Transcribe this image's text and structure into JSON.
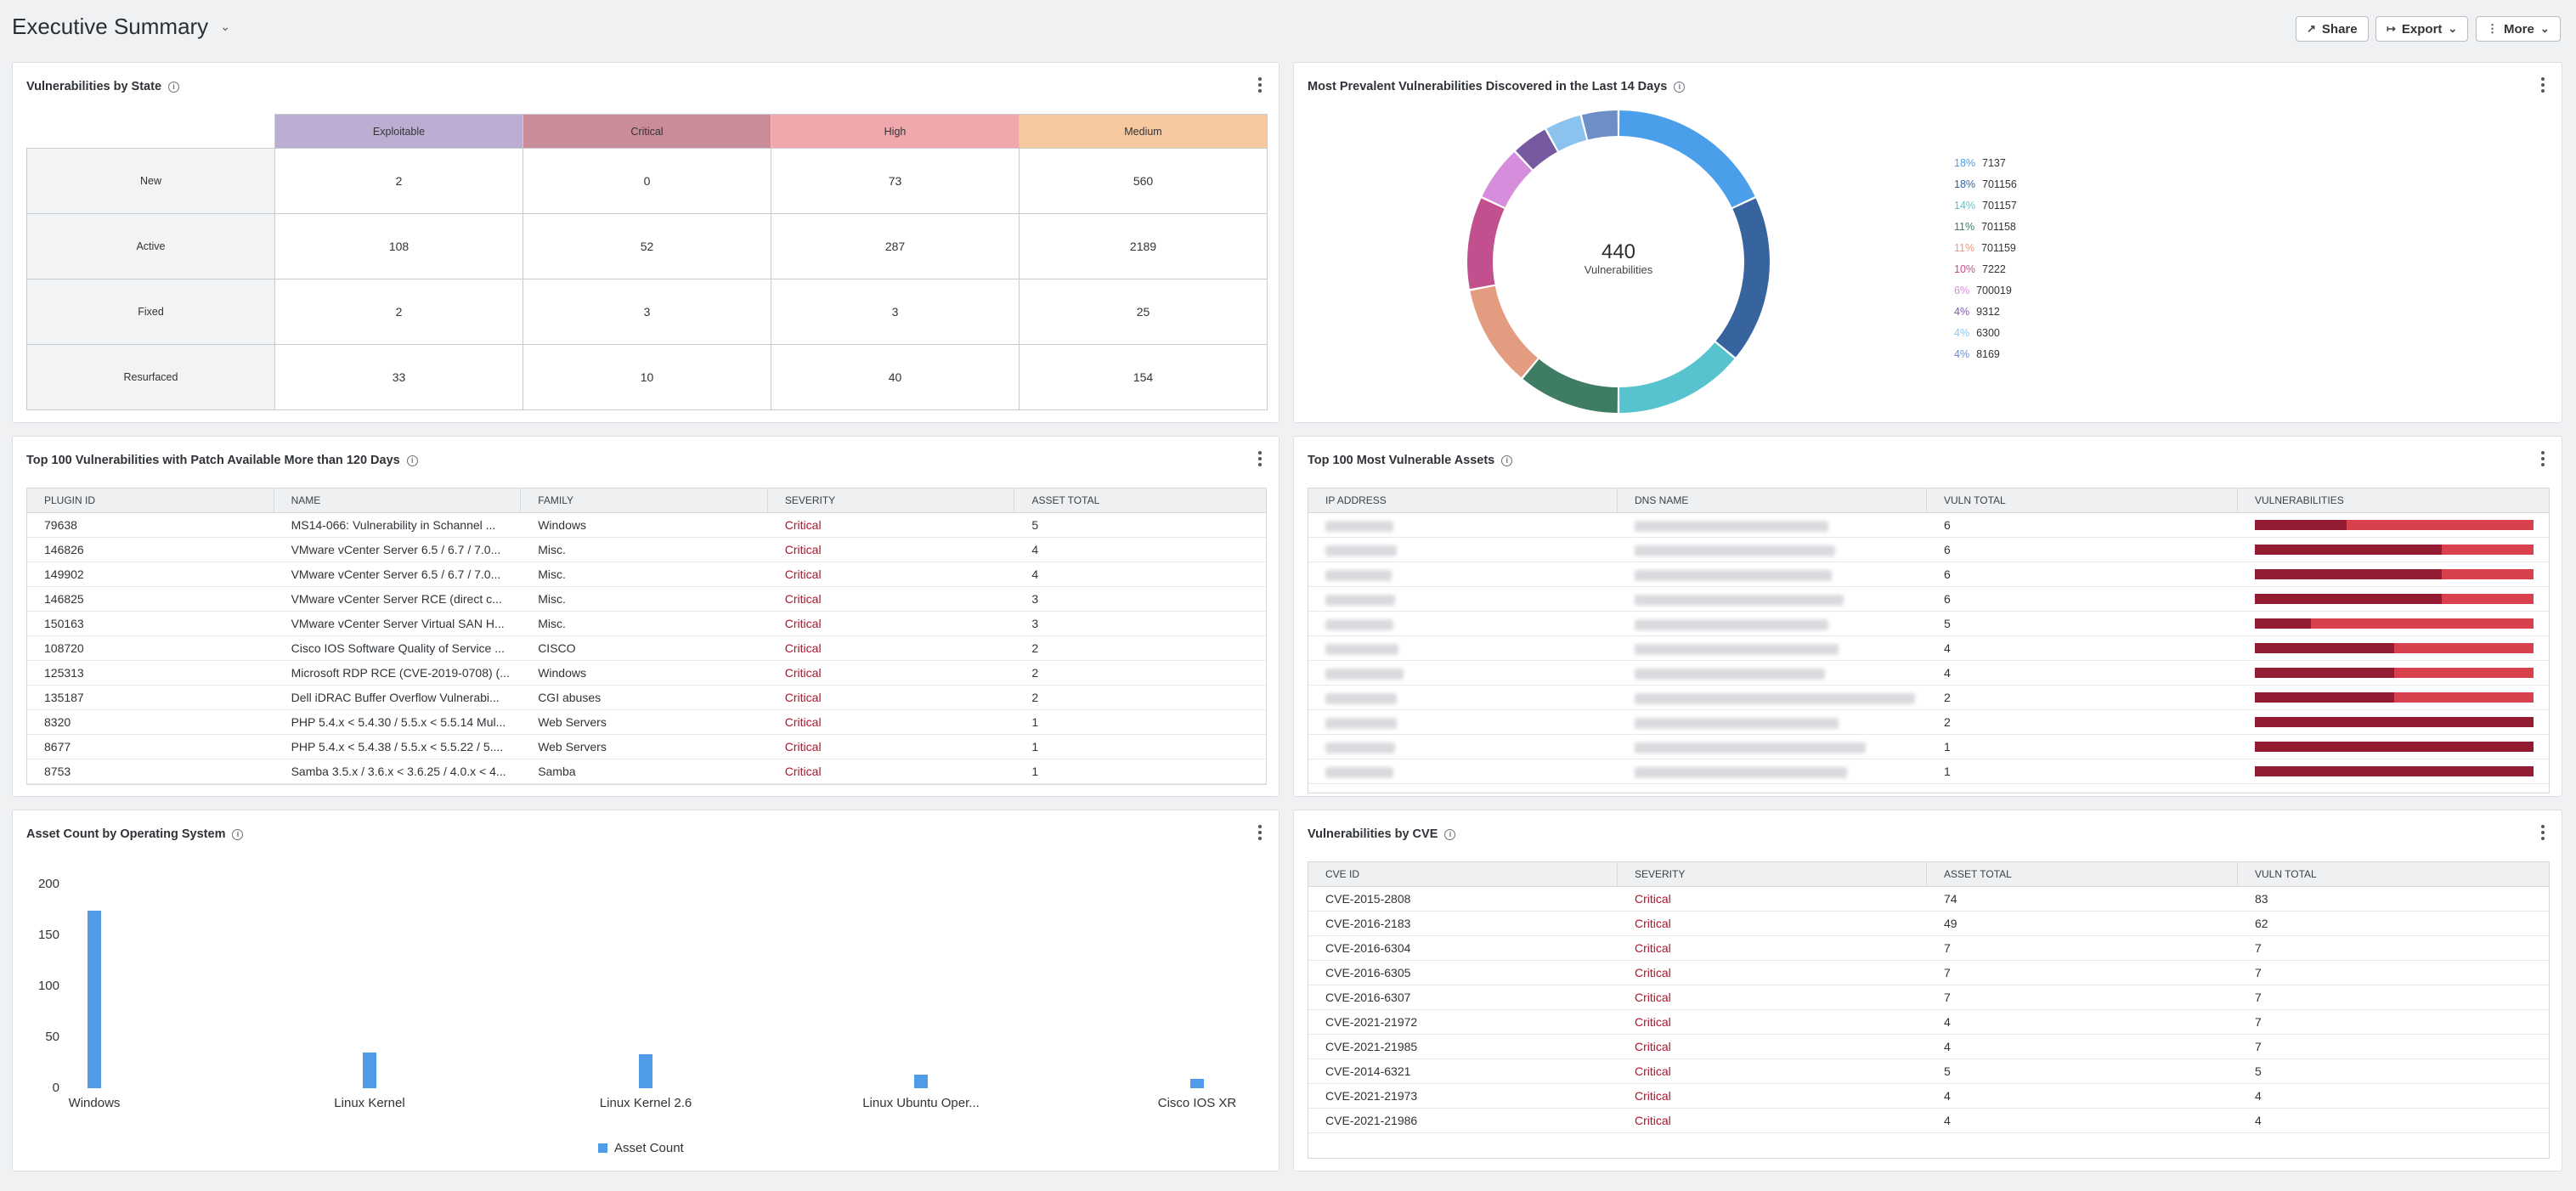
{
  "header": {
    "title": "Executive Summary",
    "share_label": "Share",
    "export_label": "Export",
    "more_label": "More"
  },
  "vuln_by_state": {
    "title": "Vulnerabilities by State",
    "columns": [
      {
        "label": "Exploitable",
        "color": "#bcaed3"
      },
      {
        "label": "Critical",
        "color": "#c98c98"
      },
      {
        "label": "High",
        "color": "#f0a8ad"
      },
      {
        "label": "Medium",
        "color": "#f7c9a1"
      }
    ],
    "rows": [
      {
        "label": "New",
        "values": [
          "2",
          "0",
          "73",
          "560"
        ]
      },
      {
        "label": "Active",
        "values": [
          "108",
          "52",
          "287",
          "2189"
        ]
      },
      {
        "label": "Fixed",
        "values": [
          "2",
          "3",
          "3",
          "25"
        ]
      },
      {
        "label": "Resurfaced",
        "values": [
          "33",
          "10",
          "40",
          "154"
        ]
      }
    ]
  },
  "prevalent": {
    "title": "Most Prevalent Vulnerabilities Discovered in the Last 14 Days",
    "center_value": "440",
    "center_label": "Vulnerabilities",
    "chart_data": {
      "type": "pie",
      "slices": [
        {
          "pct": "18%",
          "label": "7137",
          "value": 18,
          "color": "#4b9ee9"
        },
        {
          "pct": "18%",
          "label": "701156",
          "value": 18,
          "color": "#37649f"
        },
        {
          "pct": "14%",
          "label": "701157",
          "value": 14,
          "color": "#56c3cf"
        },
        {
          "pct": "11%",
          "label": "701158",
          "value": 11,
          "color": "#3e7d63"
        },
        {
          "pct": "11%",
          "label": "701159",
          "value": 11,
          "color": "#e49c80"
        },
        {
          "pct": "10%",
          "label": "7222",
          "value": 10,
          "color": "#c2508f"
        },
        {
          "pct": "6%",
          "label": "700019",
          "value": 6,
          "color": "#d68ddc"
        },
        {
          "pct": "4%",
          "label": "9312",
          "value": 4,
          "color": "#76599e"
        },
        {
          "pct": "4%",
          "label": "6300",
          "value": 4,
          "color": "#8cc3ee"
        },
        {
          "pct": "4%",
          "label": "8169",
          "value": 4,
          "color": "#6c8fc7"
        }
      ]
    }
  },
  "patch_table": {
    "title": "Top 100 Vulnerabilities with Patch Available More than 120 Days",
    "headers": [
      "PLUGIN ID",
      "NAME",
      "FAMILY",
      "SEVERITY",
      "ASSET TOTAL"
    ],
    "rows": [
      [
        "79638",
        "MS14-066: Vulnerability in Schannel ...",
        "Windows",
        "Critical",
        "5"
      ],
      [
        "146826",
        "VMware vCenter Server 6.5 / 6.7 / 7.0...",
        "Misc.",
        "Critical",
        "4"
      ],
      [
        "149902",
        "VMware vCenter Server 6.5 / 6.7 / 7.0...",
        "Misc.",
        "Critical",
        "4"
      ],
      [
        "146825",
        "VMware vCenter Server RCE (direct c...",
        "Misc.",
        "Critical",
        "3"
      ],
      [
        "150163",
        "VMware vCenter Server Virtual SAN H...",
        "Misc.",
        "Critical",
        "3"
      ],
      [
        "108720",
        "Cisco IOS Software Quality of Service ...",
        "CISCO",
        "Critical",
        "2"
      ],
      [
        "125313",
        "Microsoft RDP RCE (CVE-2019-0708) (...",
        "Windows",
        "Critical",
        "2"
      ],
      [
        "135187",
        "Dell iDRAC Buffer Overflow Vulnerabi...",
        "CGI abuses",
        "Critical",
        "2"
      ],
      [
        "8320",
        "PHP 5.4.x < 5.4.30 / 5.5.x < 5.5.14 Mul...",
        "Web Servers",
        "Critical",
        "1"
      ],
      [
        "8677",
        "PHP 5.4.x < 5.4.38 / 5.5.x < 5.5.22 / 5....",
        "Web Servers",
        "Critical",
        "1"
      ],
      [
        "8753",
        "Samba 3.5.x / 3.6.x < 3.6.25 / 4.0.x < 4...",
        "Samba",
        "Critical",
        "1"
      ]
    ]
  },
  "assets_table": {
    "title": "Top 100 Most Vulnerable Assets",
    "headers": [
      "IP ADDRESS",
      "DNS NAME",
      "VULN TOTAL",
      "VULNERABILITIES"
    ],
    "rows": [
      {
        "vuln_total": "6",
        "critical_share": 0.33
      },
      {
        "vuln_total": "6",
        "critical_share": 0.67
      },
      {
        "vuln_total": "6",
        "critical_share": 0.67
      },
      {
        "vuln_total": "6",
        "critical_share": 0.67
      },
      {
        "vuln_total": "5",
        "critical_share": 0.2
      },
      {
        "vuln_total": "4",
        "critical_share": 0.5
      },
      {
        "vuln_total": "4",
        "critical_share": 0.5
      },
      {
        "vuln_total": "2",
        "critical_share": 0.5
      },
      {
        "vuln_total": "2",
        "critical_share": 1.0
      },
      {
        "vuln_total": "1",
        "critical_share": 1.0
      },
      {
        "vuln_total": "1",
        "critical_share": 1.0
      }
    ],
    "colors": {
      "critical": "#931c33",
      "high": "#d9404d"
    }
  },
  "os_chart": {
    "title": "Asset Count by Operating System",
    "legend_label": "Asset Count",
    "chart_data": {
      "type": "bar",
      "categories": [
        "Windows",
        "Linux Kernel",
        "Linux Kernel 2.6",
        "Linux Ubuntu Oper...",
        "Cisco IOS XR"
      ],
      "series": [
        {
          "name": "Asset Count",
          "values": [
            174,
            35,
            33,
            13,
            9
          ]
        }
      ],
      "yticks": [
        "0",
        "50",
        "100",
        "150",
        "200"
      ],
      "ylim": [
        0,
        200
      ],
      "color": "#4f9be8"
    }
  },
  "cve_table": {
    "title": "Vulnerabilities by CVE",
    "headers": [
      "CVE ID",
      "SEVERITY",
      "ASSET TOTAL",
      "VULN TOTAL"
    ],
    "rows": [
      [
        "CVE-2015-2808",
        "Critical",
        "74",
        "83"
      ],
      [
        "CVE-2016-2183",
        "Critical",
        "49",
        "62"
      ],
      [
        "CVE-2016-6304",
        "Critical",
        "7",
        "7"
      ],
      [
        "CVE-2016-6305",
        "Critical",
        "7",
        "7"
      ],
      [
        "CVE-2016-6307",
        "Critical",
        "7",
        "7"
      ],
      [
        "CVE-2021-21972",
        "Critical",
        "4",
        "7"
      ],
      [
        "CVE-2021-21985",
        "Critical",
        "4",
        "7"
      ],
      [
        "CVE-2014-6321",
        "Critical",
        "5",
        "5"
      ],
      [
        "CVE-2021-21973",
        "Critical",
        "4",
        "4"
      ],
      [
        "CVE-2021-21986",
        "Critical",
        "4",
        "4"
      ]
    ]
  }
}
